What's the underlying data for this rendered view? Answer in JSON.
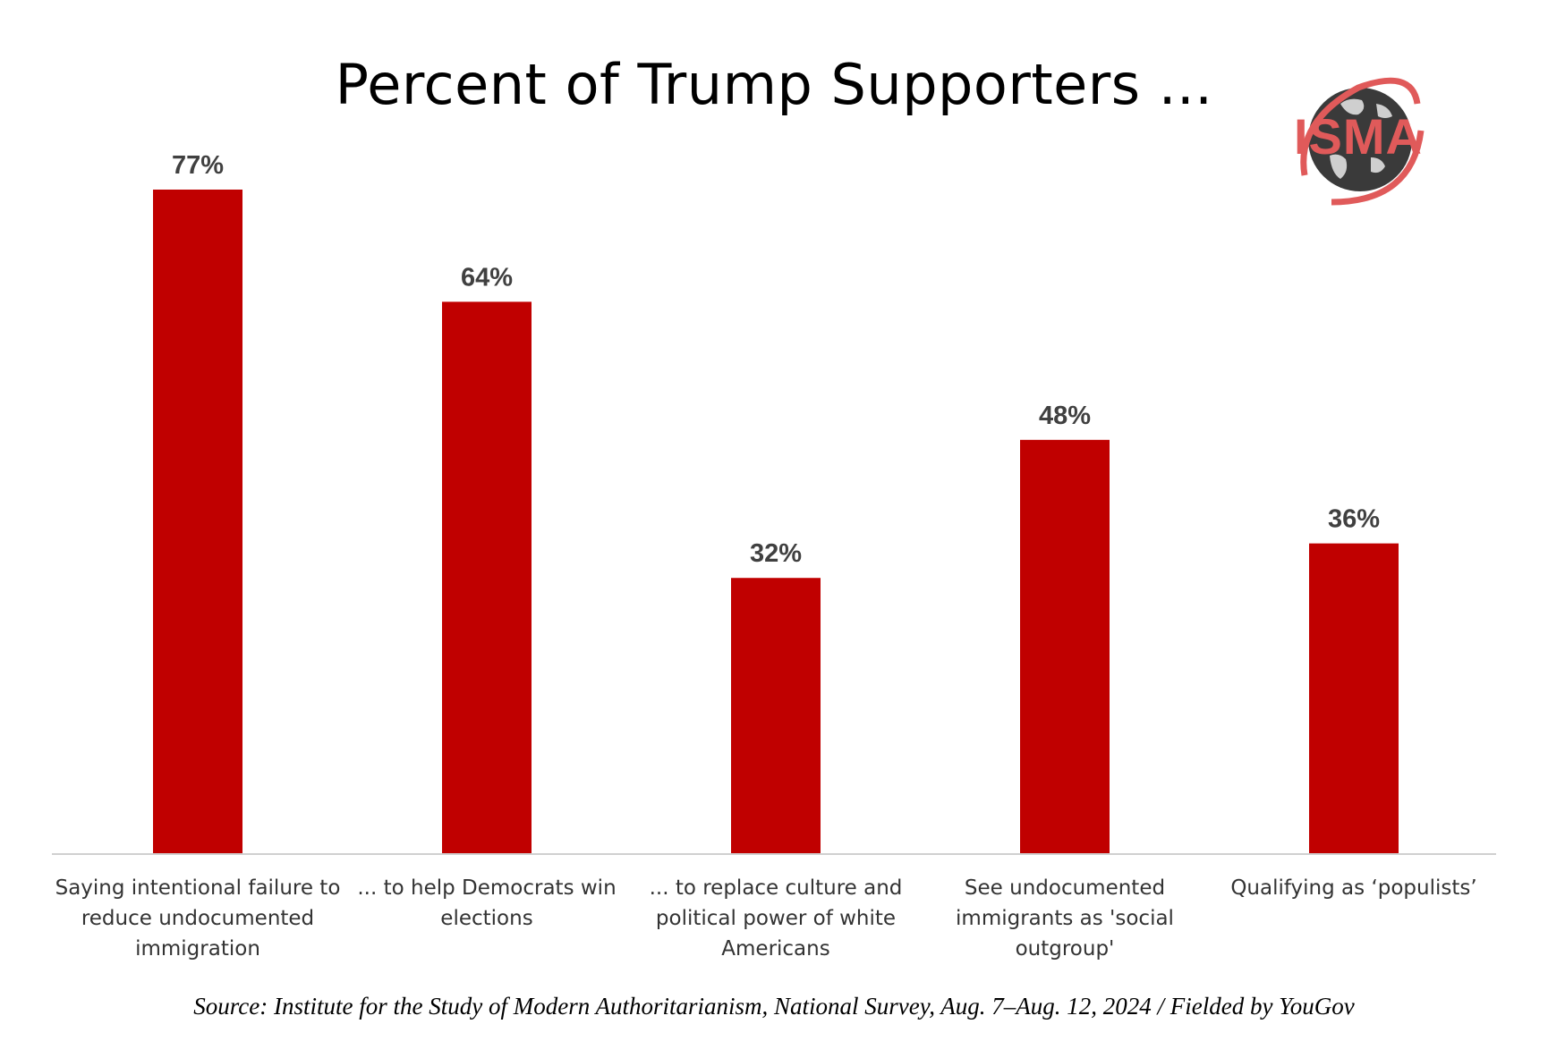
{
  "chart_data": {
    "type": "bar",
    "title": "Percent of Trump Supporters ...",
    "categories": [
      [
        "Saying intentional failure to",
        "reduce undocumented",
        "immigration"
      ],
      [
        "... to help Democrats win",
        "elections"
      ],
      [
        "... to replace culture and",
        "political power of white",
        "Americans"
      ],
      [
        "See undocumented",
        "immigrants as 'social",
        "outgroup'"
      ],
      [
        "Qualifying as ‘populists’"
      ]
    ],
    "values": [
      77,
      64,
      32,
      48,
      36
    ],
    "value_labels": [
      "77%",
      "64%",
      "32%",
      "48%",
      "36%"
    ],
    "ylim": [
      0,
      77
    ],
    "grid": false,
    "legend": "none",
    "bar_color": "#c00000"
  },
  "source": "Source: Institute for the Study of Modern Authoritarianism, National Survey, Aug. 7–Aug. 12, 2024 / Fielded by YouGov",
  "logo": {
    "text": "ISMA",
    "color": "#e05a5a",
    "icon": "globe-icon"
  }
}
